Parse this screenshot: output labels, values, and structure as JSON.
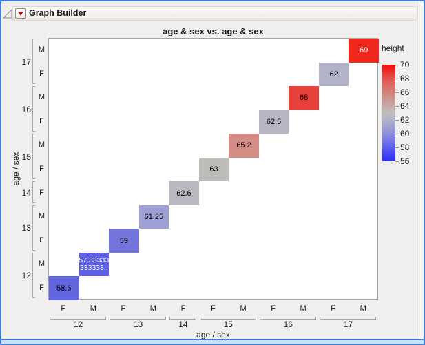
{
  "window": {
    "title": "Graph Builder",
    "border_color": "#3E7ED7"
  },
  "chart_data": {
    "type": "heatmap",
    "title": "age & sex vs. age & sex",
    "xlabel": "age / sex",
    "ylabel": "age / sex",
    "x_axis_note": "grouped categorical axis: sex nested under age, left-to-right",
    "y_axis_note": "same categories as x, bottom-to-top",
    "groups": [
      {
        "age": "12",
        "sexes": [
          "F",
          "M"
        ]
      },
      {
        "age": "13",
        "sexes": [
          "F",
          "M"
        ]
      },
      {
        "age": "14",
        "sexes": [
          "F"
        ]
      },
      {
        "age": "15",
        "sexes": [
          "F",
          "M"
        ]
      },
      {
        "age": "16",
        "sexes": [
          "F",
          "M"
        ]
      },
      {
        "age": "17",
        "sexes": [
          "F",
          "M"
        ]
      }
    ],
    "cells": [
      {
        "x": "12 F",
        "y": "12 F",
        "display": [
          "58.6"
        ],
        "value": 58.6,
        "fill": "#6466DF",
        "text_color": "#000000"
      },
      {
        "x": "12 M",
        "y": "12 M",
        "display": [
          "57.33333",
          "333333.."
        ],
        "value": 57.3333333333333,
        "fill": "#5D5FE7",
        "text_color": "#FFFFFF"
      },
      {
        "x": "13 F",
        "y": "13 F",
        "display": [
          "59"
        ],
        "value": 59,
        "fill": "#7375DD",
        "text_color": "#000000"
      },
      {
        "x": "13 M",
        "y": "13 M",
        "display": [
          "61.25"
        ],
        "value": 61.25,
        "fill": "#9E9FD5",
        "text_color": "#000000"
      },
      {
        "x": "14 F",
        "y": "14 F",
        "display": [
          "62.6"
        ],
        "value": 62.6,
        "fill": "#B9B8BE",
        "text_color": "#000000"
      },
      {
        "x": "15 F",
        "y": "15 F",
        "display": [
          "63"
        ],
        "value": 63,
        "fill": "#BEBCB9",
        "text_color": "#000000"
      },
      {
        "x": "15 M",
        "y": "15 M",
        "display": [
          "65.2"
        ],
        "value": 65.2,
        "fill": "#D48C85",
        "text_color": "#000000"
      },
      {
        "x": "16 F",
        "y": "16 F",
        "display": [
          "62.5"
        ],
        "value": 62.5,
        "fill": "#B6B6C5",
        "text_color": "#000000"
      },
      {
        "x": "16 M",
        "y": "16 M",
        "display": [
          "68"
        ],
        "value": 68,
        "fill": "#E8413C",
        "text_color": "#000000"
      },
      {
        "x": "17 F",
        "y": "17 F",
        "display": [
          "62"
        ],
        "value": 62,
        "fill": "#B2B2C8",
        "text_color": "#000000"
      },
      {
        "x": "17 M",
        "y": "17 M",
        "display": [
          "69"
        ],
        "value": 69,
        "fill": "#F0281E",
        "text_color": "#FFFFFF"
      }
    ],
    "legend": {
      "title": "height",
      "ticks": [
        70,
        68,
        66,
        64,
        62,
        60,
        58,
        56
      ],
      "min": 56,
      "max": 70,
      "colormap": [
        "#2D2DFB",
        "#BEBEBE",
        "#F50C0C"
      ],
      "position": "right"
    }
  }
}
